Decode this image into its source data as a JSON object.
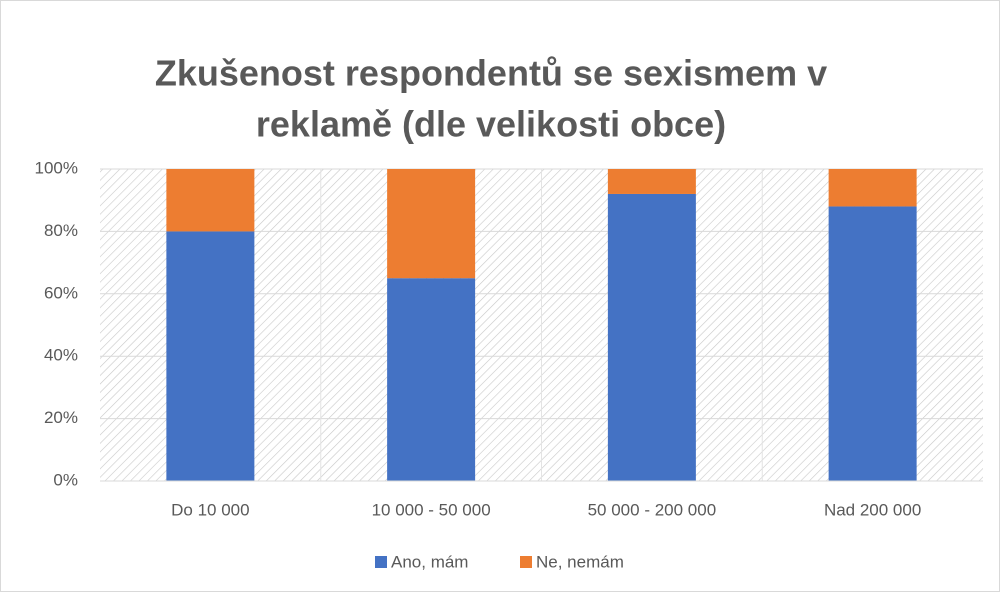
{
  "chart_data": {
    "type": "stacked_bar",
    "title": [
      "Zkušenost respondentů se sexismem v",
      "reklamě (dle velikosti obce)"
    ],
    "categories": [
      "Do 10 000",
      "10 000 - 50 000",
      "50 000 - 200 000",
      "Nad 200 000"
    ],
    "series": [
      {
        "name": "Ano, mám",
        "color": "#4472c4",
        "values": [
          80,
          65,
          92,
          88
        ]
      },
      {
        "name": "Ne, nemám",
        "color": "#ed7d31",
        "values": [
          20,
          35,
          8,
          12
        ]
      }
    ],
    "ylim": [
      0,
      100
    ],
    "yticks": [
      {
        "value": 0,
        "label": "0%"
      },
      {
        "value": 20,
        "label": "20%"
      },
      {
        "value": 40,
        "label": "40%"
      },
      {
        "value": 60,
        "label": "60%"
      },
      {
        "value": 80,
        "label": "80%"
      },
      {
        "value": 100,
        "label": "100%"
      }
    ],
    "grid": true,
    "legend": "bottom"
  }
}
